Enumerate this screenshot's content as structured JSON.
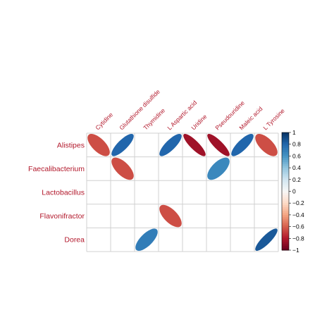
{
  "chart_data": {
    "type": "heatmap",
    "style": "ellipse-correlation-matrix",
    "title": "",
    "rows": [
      "Alistipes",
      "Faecalibacterium",
      "Lactobacillus",
      "Flavonifractor",
      "Dorea"
    ],
    "columns": [
      "Cytidine",
      "Glutathione disulfide",
      "Thymidine",
      "L Aspartic acid",
      "Uridine",
      "Pseudouridine",
      "Maleic acid",
      "L Tyrosine"
    ],
    "values": [
      [
        -0.65,
        0.8,
        null,
        0.8,
        -0.85,
        -0.85,
        0.8,
        -0.65
      ],
      [
        null,
        -0.65,
        null,
        null,
        null,
        0.65,
        null,
        null
      ],
      [
        null,
        null,
        null,
        null,
        null,
        null,
        null,
        null
      ],
      [
        null,
        null,
        null,
        -0.65,
        null,
        null,
        null,
        null
      ],
      [
        null,
        null,
        0.7,
        null,
        null,
        null,
        null,
        0.85
      ]
    ],
    "colorbar": {
      "range": [
        -1,
        1
      ],
      "ticks": [
        "1",
        "0.8",
        "0.6",
        "0.4",
        "0.2",
        "0",
        "−0.2",
        "−0.4",
        "−0.6",
        "−0.8",
        "−1"
      ],
      "low_color": "#67001f",
      "mid_color": "#f7f7f7",
      "high_color": "#053061"
    },
    "label_color": "#b2182b",
    "grid": true,
    "legend_placement": "right"
  }
}
